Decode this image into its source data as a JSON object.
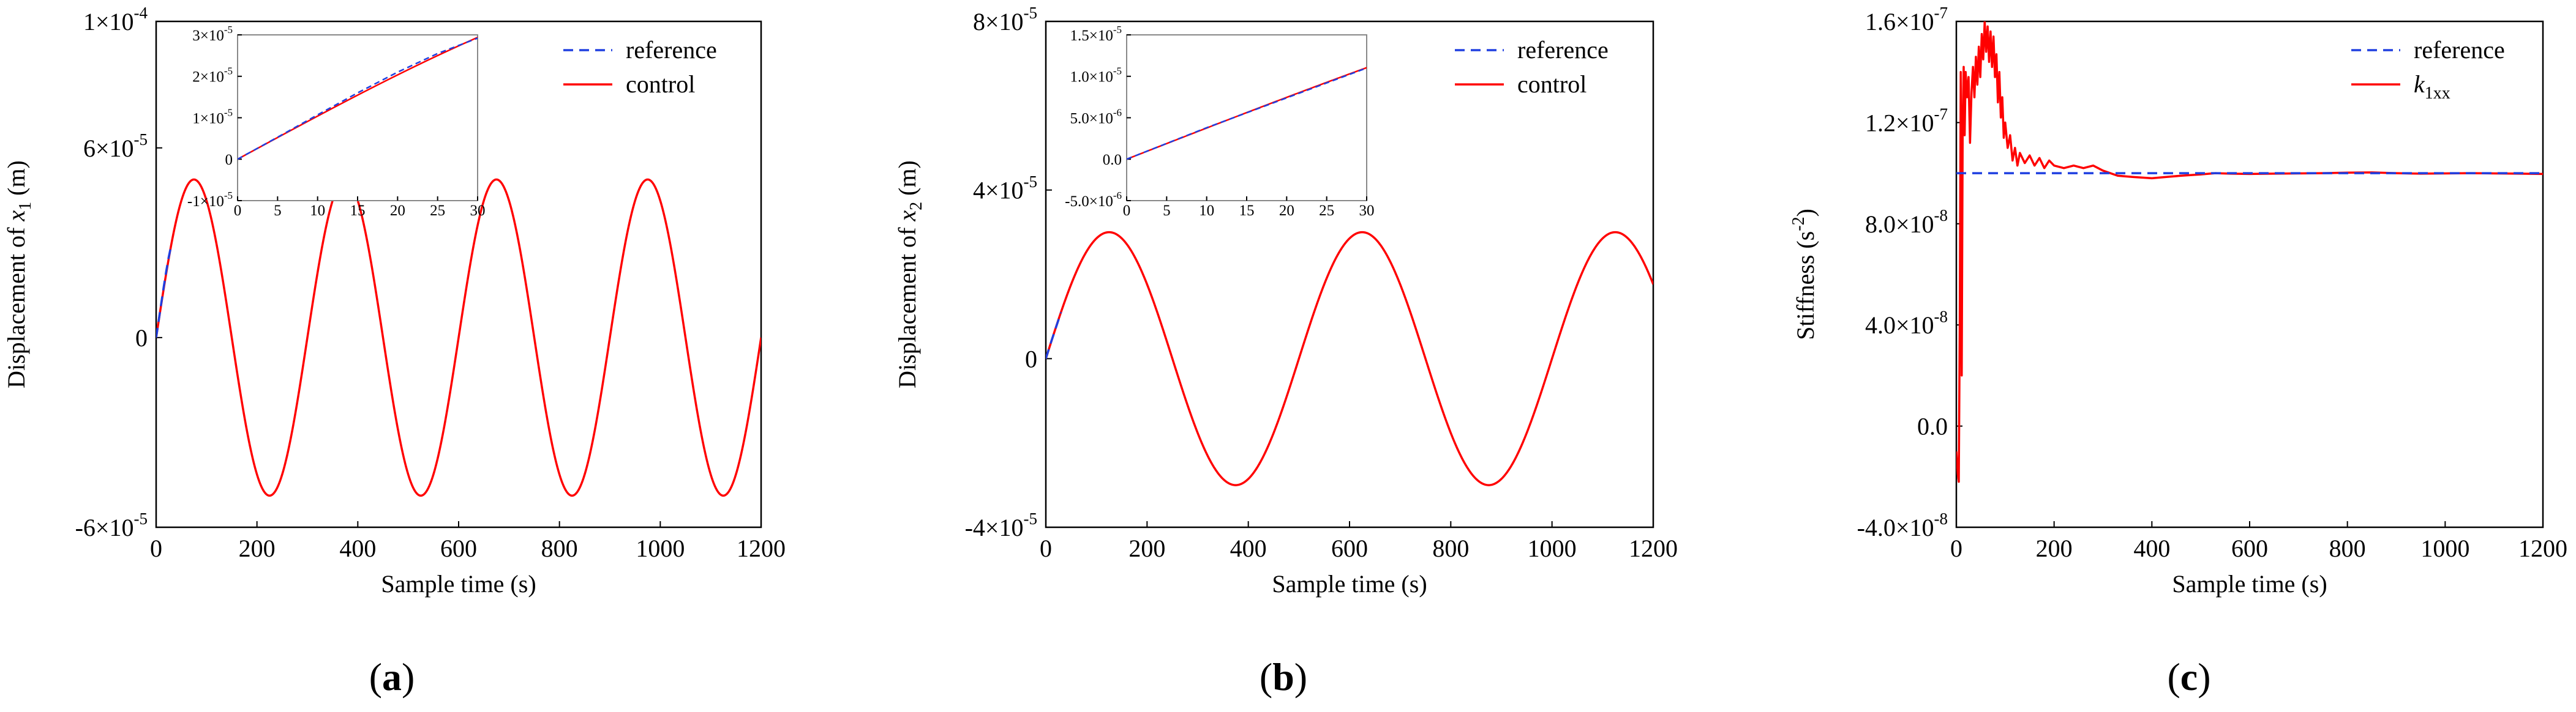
{
  "figure": {
    "panel_labels": [
      "(a)",
      "(b)",
      "(c)"
    ]
  },
  "chart_data": [
    {
      "type": "line",
      "panel": "(a)",
      "xlabel": "Sample time (s)",
      "ylabel": {
        "prefix": "Displacement of ",
        "var": "x",
        "sub": "1",
        "unit": " (m)"
      },
      "xlim": [
        0,
        1200
      ],
      "ylim": [
        -6e-05,
        0.0001
      ],
      "xticks": [
        0,
        200,
        400,
        600,
        800,
        1000,
        1200
      ],
      "xtick_labels": [
        "0",
        "200",
        "400",
        "600",
        "800",
        "1000",
        "1200"
      ],
      "yticks": [
        -6e-05,
        0,
        6e-05,
        0.0001
      ],
      "ytick_labels": [
        {
          "mant": "-6×10",
          "exp": "-5"
        },
        {
          "mant": "0",
          "exp": ""
        },
        {
          "mant": "6×10",
          "exp": "-5"
        },
        {
          "mant": "1×10",
          "exp": "-4"
        }
      ],
      "legend": [
        {
          "label": "reference",
          "color": "#1f3fe0",
          "style": "dashed"
        },
        {
          "label": "control",
          "color": "#ff0000",
          "style": "solid"
        }
      ],
      "series": [
        {
          "name": "reference",
          "color": "#1f3fe0",
          "style": "dashed",
          "x": [
            0,
            5,
            10,
            15,
            20,
            25,
            30
          ],
          "y": [
            0,
            5.3e-06,
            1.07e-05,
            1.6e-05,
            2.1e-05,
            2.55e-05,
            2.92e-05
          ]
        },
        {
          "name": "control",
          "color": "#ff0000",
          "style": "solid",
          "function": {
            "kind": "sine",
            "amplitude": 5e-05,
            "period": 300,
            "phase": 0
          }
        }
      ],
      "inset": {
        "xlim": [
          0,
          30
        ],
        "ylim": [
          -1e-05,
          3e-05
        ],
        "xticks": [
          0,
          5,
          10,
          15,
          20,
          25,
          30
        ],
        "xtick_labels": [
          "0",
          "5",
          "10",
          "15",
          "20",
          "25",
          "30"
        ],
        "yticks": [
          -1e-05,
          0,
          1e-05,
          2e-05,
          3e-05
        ],
        "ytick_labels": [
          {
            "mant": "-1×10",
            "exp": "-5"
          },
          {
            "mant": "0",
            "exp": ""
          },
          {
            "mant": "1×10",
            "exp": "-5"
          },
          {
            "mant": "2×10",
            "exp": "-5"
          },
          {
            "mant": "3×10",
            "exp": "-5"
          }
        ]
      }
    },
    {
      "type": "line",
      "panel": "(b)",
      "xlabel": "Sample time (s)",
      "ylabel": {
        "prefix": "Displacement of ",
        "var": "x",
        "sub": "2",
        "unit": " (m)"
      },
      "xlim": [
        0,
        1200
      ],
      "ylim": [
        -4e-05,
        8e-05
      ],
      "xticks": [
        0,
        200,
        400,
        600,
        800,
        1000,
        1200
      ],
      "xtick_labels": [
        "0",
        "200",
        "400",
        "600",
        "800",
        "1000",
        "1200"
      ],
      "yticks": [
        -4e-05,
        0,
        4e-05,
        8e-05
      ],
      "ytick_labels": [
        {
          "mant": "-4×10",
          "exp": "-5"
        },
        {
          "mant": "0",
          "exp": ""
        },
        {
          "mant": "4×10",
          "exp": "-5"
        },
        {
          "mant": "8×10",
          "exp": "-5"
        }
      ],
      "legend": [
        {
          "label": "reference",
          "color": "#1f3fe0",
          "style": "dashed"
        },
        {
          "label": "control",
          "color": "#ff0000",
          "style": "solid"
        }
      ],
      "series": [
        {
          "name": "reference",
          "color": "#1f3fe0",
          "style": "dashed",
          "x": [
            0,
            5,
            10,
            15,
            20,
            25,
            30
          ],
          "y": [
            0,
            1.9e-06,
            3.8e-06,
            5.6e-06,
            7.4e-06,
            9.2e-06,
            1.1e-05
          ]
        },
        {
          "name": "control",
          "color": "#ff0000",
          "style": "solid",
          "function": {
            "kind": "sine",
            "amplitude": 3e-05,
            "period": 500,
            "phase": 0
          }
        }
      ],
      "inset": {
        "xlim": [
          0,
          30
        ],
        "ylim": [
          -5e-06,
          1.5e-05
        ],
        "xticks": [
          0,
          5,
          10,
          15,
          20,
          25,
          30
        ],
        "xtick_labels": [
          "0",
          "5",
          "10",
          "15",
          "20",
          "25",
          "30"
        ],
        "yticks": [
          -5e-06,
          0,
          5e-06,
          1e-05,
          1.5e-05
        ],
        "ytick_labels": [
          {
            "mant": "-5.0×10",
            "exp": "-6"
          },
          {
            "mant": "0.0",
            "exp": ""
          },
          {
            "mant": "5.0×10",
            "exp": "-6"
          },
          {
            "mant": "1.0×10",
            "exp": "-5"
          },
          {
            "mant": "1.5×10",
            "exp": "-5"
          }
        ]
      }
    },
    {
      "type": "line",
      "panel": "(c)",
      "xlabel": "Sample time (s)",
      "ylabel": {
        "prefix": "Stiffness (s",
        "sup": "-2",
        "unit": ")"
      },
      "xlim": [
        0,
        1200
      ],
      "ylim": [
        -4e-08,
        1.6e-07
      ],
      "xticks": [
        0,
        200,
        400,
        600,
        800,
        1000,
        1200
      ],
      "xtick_labels": [
        "0",
        "200",
        "400",
        "600",
        "800",
        "1000",
        "1200"
      ],
      "yticks": [
        -4e-08,
        0,
        4e-08,
        8e-08,
        1.2e-07,
        1.6e-07
      ],
      "ytick_labels": [
        {
          "mant": "-4.0×10",
          "exp": "-8"
        },
        {
          "mant": "0.0",
          "exp": ""
        },
        {
          "mant": "4.0×10",
          "exp": "-8"
        },
        {
          "mant": "8.0×10",
          "exp": "-8"
        },
        {
          "mant": "1.2×10",
          "exp": "-7"
        },
        {
          "mant": "1.6×10",
          "exp": "-7"
        }
      ],
      "legend": [
        {
          "label": "reference",
          "color": "#1f3fe0",
          "style": "dashed"
        },
        {
          "label": "k",
          "label_sub": "1xx",
          "color": "#ff0000",
          "style": "solid"
        }
      ],
      "series": [
        {
          "name": "reference",
          "color": "#1f3fe0",
          "style": "dashed",
          "x": [
            0,
            1200
          ],
          "y": [
            1e-07,
            1e-07
          ]
        },
        {
          "name": "k1xx",
          "color": "#ff0000",
          "style": "solid",
          "x": [
            0,
            3,
            5,
            7,
            9,
            11,
            13,
            15,
            17,
            19,
            22,
            25,
            28,
            31,
            34,
            37,
            40,
            43,
            46,
            49,
            52,
            55,
            58,
            61,
            64,
            67,
            70,
            73,
            76,
            79,
            82,
            85,
            88,
            91,
            94,
            97,
            100,
            105,
            110,
            115,
            120,
            125,
            130,
            140,
            150,
            160,
            170,
            180,
            190,
            200,
            220,
            240,
            260,
            280,
            300,
            330,
            360,
            400,
            430,
            460,
            500,
            530,
            560,
            600,
            650,
            700,
            750,
            800,
            850,
            900,
            950,
            1000,
            1050,
            1100,
            1150,
            1200
          ],
          "y": [
            -1e-08,
            -1.9e-08,
            -2.2e-08,
            4e-08,
            1.4e-07,
            2e-08,
            1.2e-07,
            1.42e-07,
            1.15e-07,
            1.4e-07,
            1.3e-07,
            1.38e-07,
            1.12e-07,
            1.32e-07,
            1.42e-07,
            1.3e-07,
            1.46e-07,
            1.35e-07,
            1.5e-07,
            1.38e-07,
            1.55e-07,
            1.45e-07,
            1.6e-07,
            1.48e-07,
            1.58e-07,
            1.44e-07,
            1.56e-07,
            1.42e-07,
            1.54e-07,
            1.38e-07,
            1.47e-07,
            1.28e-07,
            1.4e-07,
            1.22e-07,
            1.3e-07,
            1.14e-07,
            1.2e-07,
            1.1e-07,
            1.15e-07,
            1.05e-07,
            1.1e-07,
            1.03e-07,
            1.08e-07,
            1.04e-07,
            1.07e-07,
            1.03e-07,
            1.06e-07,
            1.02e-07,
            1.05e-07,
            1.03e-07,
            1.02e-07,
            1.03e-07,
            1.02e-07,
            1.03e-07,
            1.01e-07,
            9.9e-08,
            9.85e-08,
            9.8e-08,
            9.85e-08,
            9.9e-08,
            9.95e-08,
            1e-07,
            9.98e-08,
            9.97e-08,
            9.98e-08,
            9.99e-08,
            1e-07,
            1.002e-07,
            1.003e-07,
            1e-07,
            9.98e-08,
            9.99e-08,
            1e-07,
            9.99e-08,
            9.98e-08,
            9.97e-08
          ]
        }
      ]
    }
  ]
}
